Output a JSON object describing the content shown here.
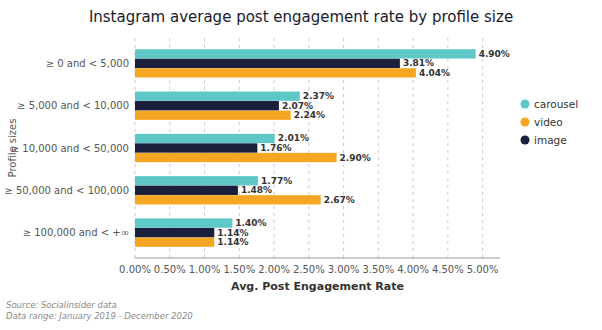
{
  "chart_data": {
    "type": "bar",
    "orientation": "horizontal",
    "title": "Instagram average post engagement rate by profile size",
    "xlabel": "Avg. Post Engagement Rate",
    "ylabel": "Profile sizes",
    "categories": [
      "≥ 0 and < 5,000",
      "≥ 5,000 and < 10,000",
      "≥ 10,000 and < 50,000",
      "≥ 50,000 and < 100,000",
      "≥ 100,000 and < +∞"
    ],
    "series": [
      {
        "name": "carousel",
        "color": "#5ec8c8",
        "values": [
          4.9,
          2.37,
          2.01,
          1.77,
          1.4
        ],
        "value_labels": [
          "4.90%",
          "2.37%",
          "2.01%",
          "1.77%",
          "1.40%"
        ]
      },
      {
        "name": "video",
        "color": "#f5a623",
        "values": [
          4.04,
          2.24,
          2.9,
          2.67,
          1.14
        ],
        "value_labels": [
          "4.04%",
          "2.24%",
          "2.90%",
          "2.67%",
          "1.14%"
        ]
      },
      {
        "name": "image",
        "color": "#1a1f3c",
        "values": [
          3.81,
          2.07,
          1.76,
          1.48,
          1.14
        ],
        "value_labels": [
          "3.81%",
          "2.07%",
          "1.76%",
          "1.48%",
          "1.14%"
        ]
      }
    ],
    "xlim": [
      0,
      5.25
    ],
    "xticks": [
      {
        "value": 0.0,
        "label": "0.00%"
      },
      {
        "value": 0.5,
        "label": "0.50%"
      },
      {
        "value": 1.0,
        "label": "1.00%"
      },
      {
        "value": 1.5,
        "label": "1.50%"
      },
      {
        "value": 2.0,
        "label": "2.00%"
      },
      {
        "value": 2.5,
        "label": "2.50%"
      },
      {
        "value": 3.0,
        "label": "3.00%"
      },
      {
        "value": 3.5,
        "label": "3.50%"
      },
      {
        "value": 4.0,
        "label": "4.00%"
      },
      {
        "value": 4.5,
        "label": "4.50%"
      },
      {
        "value": 5.0,
        "label": "5.00%"
      }
    ],
    "grid": true,
    "legend": "top-right",
    "data_labels": true,
    "annotations": [
      "Source: Socialinsider data",
      "Data range: January 2019 - December 2020"
    ]
  }
}
